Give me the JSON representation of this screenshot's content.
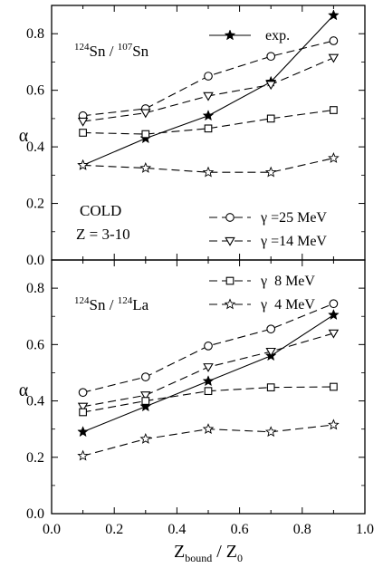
{
  "chart_data": [
    {
      "type": "line",
      "panel": "top",
      "annotations": [
        {
          "id": "title",
          "parts": [
            {
              "t": "124",
              "sup": true
            },
            {
              "t": "Sn / "
            },
            {
              "t": "107",
              "sup": true
            },
            {
              "t": "Sn"
            }
          ]
        },
        {
          "id": "cold",
          "parts": [
            {
              "t": "COLD"
            }
          ]
        },
        {
          "id": "zrange",
          "parts": [
            {
              "t": "Z = 3-10"
            }
          ]
        }
      ],
      "ylabel": "α",
      "xlim": [
        0.0,
        1.0
      ],
      "ylim": [
        0.0,
        0.9
      ],
      "yticks": [
        "0.0",
        "0.2",
        "0.4",
        "0.6",
        "0.8"
      ],
      "x": [
        0.1,
        0.3,
        0.5,
        0.7,
        0.9
      ],
      "series": [
        {
          "key": "exp",
          "marker": "filled-star",
          "dash": "solid",
          "values": [
            0.335,
            0.43,
            0.51,
            0.63,
            0.865
          ]
        },
        {
          "key": "g25",
          "marker": "circle",
          "dash": "dashed",
          "values": [
            0.51,
            0.535,
            0.65,
            0.72,
            0.775
          ]
        },
        {
          "key": "g14",
          "marker": "triangle-down",
          "dash": "dashed",
          "values": [
            0.49,
            0.52,
            0.58,
            0.62,
            0.715
          ]
        },
        {
          "key": "g8",
          "marker": "square",
          "dash": "dashed",
          "values": [
            0.45,
            0.445,
            0.465,
            0.5,
            0.53
          ]
        },
        {
          "key": "g4",
          "marker": "open-star",
          "dash": "dashed",
          "values": [
            0.335,
            0.325,
            0.31,
            0.31,
            0.36
          ]
        }
      ]
    },
    {
      "type": "line",
      "panel": "bottom",
      "annotations": [
        {
          "id": "title",
          "parts": [
            {
              "t": "124",
              "sup": true
            },
            {
              "t": "Sn / "
            },
            {
              "t": "124",
              "sup": true
            },
            {
              "t": "La"
            }
          ]
        }
      ],
      "ylabel": "α",
      "xlabel_parts": [
        {
          "t": "Z"
        },
        {
          "t": "bound",
          "sub": true
        },
        {
          "t": " / Z"
        },
        {
          "t": "0",
          "sub": true
        }
      ],
      "xlim": [
        0.0,
        1.0
      ],
      "ylim": [
        0.0,
        0.9
      ],
      "xticks": [
        "0.0",
        "0.2",
        "0.4",
        "0.6",
        "0.8",
        "1.0"
      ],
      "yticks": [
        "0.0",
        "0.2",
        "0.4",
        "0.6",
        "0.8"
      ],
      "x": [
        0.1,
        0.3,
        0.5,
        0.7,
        0.9
      ],
      "series": [
        {
          "key": "exp",
          "marker": "filled-star",
          "dash": "solid",
          "values": [
            0.29,
            0.38,
            0.47,
            0.56,
            0.705
          ]
        },
        {
          "key": "g25",
          "marker": "circle",
          "dash": "dashed",
          "values": [
            0.43,
            0.485,
            0.595,
            0.655,
            0.745
          ]
        },
        {
          "key": "g14",
          "marker": "triangle-down",
          "dash": "dashed",
          "values": [
            0.38,
            0.42,
            0.52,
            0.575,
            0.64
          ]
        },
        {
          "key": "g8",
          "marker": "square",
          "dash": "dashed",
          "values": [
            0.36,
            0.4,
            0.435,
            0.448,
            0.45
          ]
        },
        {
          "key": "g4",
          "marker": "open-star",
          "dash": "dashed",
          "values": [
            0.205,
            0.265,
            0.3,
            0.29,
            0.315
          ]
        }
      ]
    }
  ],
  "legend": [
    {
      "key": "exp",
      "marker": "filled-star",
      "dash": "solid",
      "label": "exp.",
      "panel": "top",
      "slot": 0
    },
    {
      "key": "g25",
      "marker": "circle",
      "dash": "dashed",
      "label": "γ =25 MeV",
      "panel": "top",
      "slot": 1
    },
    {
      "key": "g14",
      "marker": "triangle-down",
      "dash": "dashed",
      "label": "γ =14 MeV",
      "panel": "top",
      "slot": 2
    },
    {
      "key": "g8",
      "marker": "square",
      "dash": "dashed",
      "label": "γ  8 MeV",
      "panel": "bottom",
      "slot": 0
    },
    {
      "key": "g4",
      "marker": "open-star",
      "dash": "dashed",
      "label": "γ  4 MeV",
      "panel": "bottom",
      "slot": 1
    }
  ]
}
